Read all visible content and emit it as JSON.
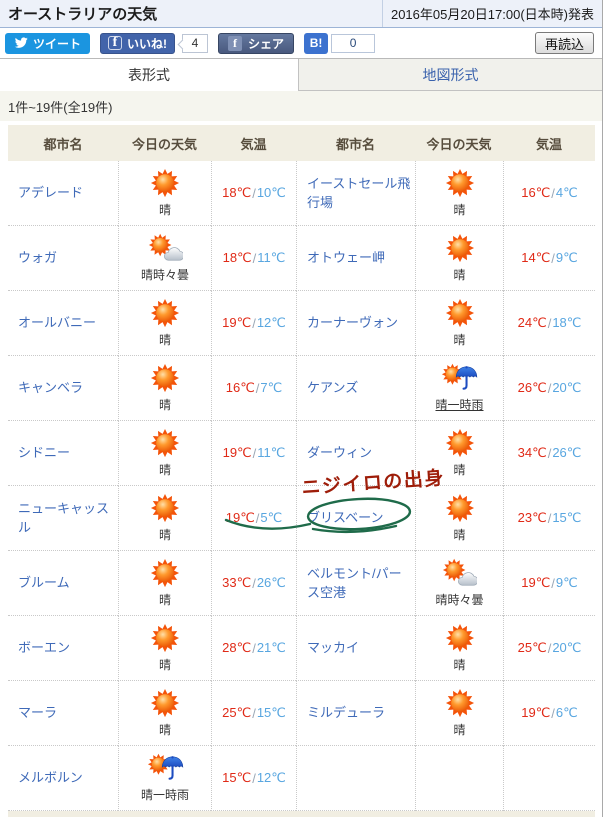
{
  "header": {
    "title": "オーストラリアの天気",
    "published": "2016年05月20日17:00(日本時)発表"
  },
  "social": {
    "tweet_label": "ツイート",
    "facebook_f": "f",
    "like_label": "いいね!",
    "like_count": "4",
    "share_label": "シェア",
    "hatena_label": "B!",
    "hatena_count": "0"
  },
  "toolbar": {
    "reload_label": "再読込"
  },
  "tabs": [
    {
      "label": "表形式",
      "active": true
    },
    {
      "label": "地図形式",
      "active": false
    }
  ],
  "list_info": "1件~19件(全19件)",
  "table": {
    "headers": [
      "都市名",
      "今日の天気",
      "気温",
      "都市名",
      "今日の天気",
      "気温"
    ],
    "temp_separator": "/",
    "rows": [
      {
        "left": {
          "city": "アデレード",
          "icon": "sun",
          "weather": "晴",
          "high": "18℃",
          "low": "10℃"
        },
        "right": {
          "city": "イーストセール飛行場",
          "icon": "sun",
          "weather": "晴",
          "high": "16℃",
          "low": "4℃"
        }
      },
      {
        "left": {
          "city": "ウォガ",
          "icon": "sun-cloud",
          "weather": "晴時々曇",
          "high": "18℃",
          "low": "11℃"
        },
        "right": {
          "city": "オトウェー岬",
          "icon": "sun",
          "weather": "晴",
          "high": "14℃",
          "low": "9℃"
        }
      },
      {
        "left": {
          "city": "オールバニー",
          "icon": "sun",
          "weather": "晴",
          "high": "19℃",
          "low": "12℃"
        },
        "right": {
          "city": "カーナーヴォン",
          "icon": "sun",
          "weather": "晴",
          "high": "24℃",
          "low": "18℃"
        }
      },
      {
        "left": {
          "city": "キャンベラ",
          "icon": "sun",
          "weather": "晴",
          "high": "16℃",
          "low": "7℃"
        },
        "right": {
          "city": "ケアンズ",
          "icon": "sun-umbrella",
          "weather": "晴一時雨",
          "underline": true,
          "high": "26℃",
          "low": "20℃"
        }
      },
      {
        "left": {
          "city": "シドニー",
          "icon": "sun",
          "weather": "晴",
          "high": "19℃",
          "low": "11℃"
        },
        "right": {
          "city": "ダーウィン",
          "icon": "sun",
          "weather": "晴",
          "high": "34℃",
          "low": "26℃"
        }
      },
      {
        "left": {
          "city": "ニューキャッスル",
          "icon": "sun",
          "weather": "晴",
          "high": "19℃",
          "low": "5℃"
        },
        "right": {
          "city": "ブリスベーン",
          "icon": "sun",
          "weather": "晴",
          "high": "23℃",
          "low": "15℃"
        }
      },
      {
        "left": {
          "city": "ブルーム",
          "icon": "sun",
          "weather": "晴",
          "high": "33℃",
          "low": "26℃"
        },
        "right": {
          "city": "ベルモント/パース空港",
          "icon": "sun-cloud",
          "weather": "晴時々曇",
          "high": "19℃",
          "low": "9℃"
        }
      },
      {
        "left": {
          "city": "ボーエン",
          "icon": "sun",
          "weather": "晴",
          "high": "28℃",
          "low": "21℃"
        },
        "right": {
          "city": "マッカイ",
          "icon": "sun",
          "weather": "晴",
          "high": "25℃",
          "low": "20℃"
        }
      },
      {
        "left": {
          "city": "マーラ",
          "icon": "sun",
          "weather": "晴",
          "high": "25℃",
          "low": "15℃"
        },
        "right": {
          "city": "ミルデューラ",
          "icon": "sun",
          "weather": "晴",
          "high": "19℃",
          "low": "6℃"
        }
      },
      {
        "left": {
          "city": "メルボルン",
          "icon": "sun-umbrella",
          "weather": "晴一時雨",
          "high": "15℃",
          "low": "12℃"
        },
        "right": null
      }
    ]
  },
  "annotation": {
    "text": "ニジイロの出身",
    "ink_color": "#9e1d09",
    "circle_color": "#1f6b4a"
  },
  "colors": {
    "temp_high": "#e02a17",
    "temp_low": "#58a6e0",
    "city_link": "#3f6ab8",
    "tab_inactive_text": "#3a62ad",
    "table_header_bg": "#f1eee2",
    "accent_twitter": "#1b95e0",
    "accent_facebook": "#4264aa",
    "accent_hatena": "#3c72cf"
  }
}
